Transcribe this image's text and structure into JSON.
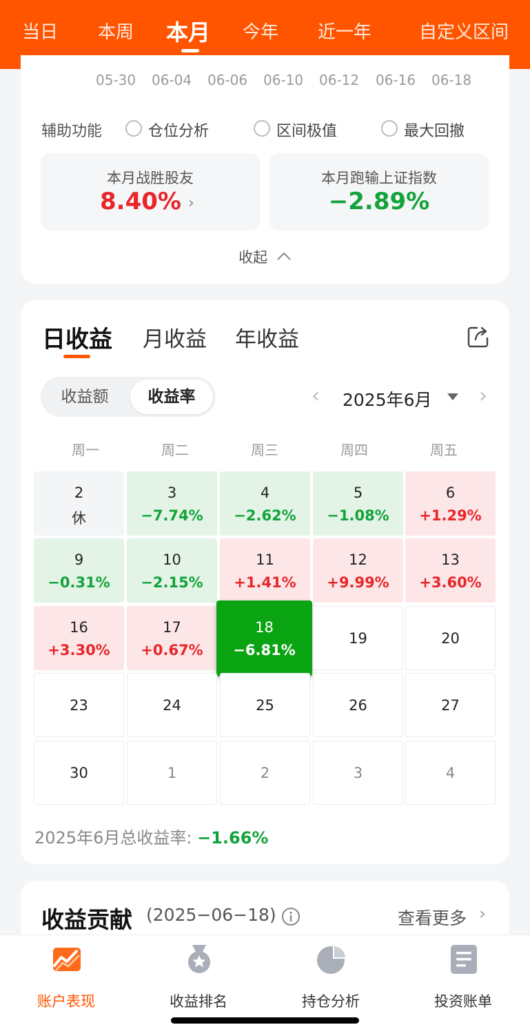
{
  "top_tabs": [
    {
      "label": "当日",
      "active": false
    },
    {
      "label": "本周",
      "active": false
    },
    {
      "label": "本月",
      "active": true
    },
    {
      "label": "今年",
      "active": false
    },
    {
      "label": "近一年",
      "active": false
    },
    {
      "label": "自定义区间",
      "active": false
    }
  ],
  "chart_axis_dates": [
    "05-30",
    "06-04",
    "06-06",
    "06-10",
    "06-12",
    "06-16",
    "06-18"
  ],
  "aux": {
    "title": "辅助功能",
    "options": [
      "仓位分析",
      "区间极值",
      "最大回撤"
    ]
  },
  "stats": {
    "beat_friends": {
      "title": "本月战胜股友",
      "value": "8.40%"
    },
    "vs_index": {
      "title": "本月跑输上证指数",
      "value": "−2.89%"
    }
  },
  "collapse_label": "收起",
  "period_tabs": [
    {
      "label": "日收益",
      "active": true
    },
    {
      "label": "月收益",
      "active": false
    },
    {
      "label": "年收益",
      "active": false
    }
  ],
  "segment": {
    "amount": "收益额",
    "rate": "收益率",
    "selected": "rate"
  },
  "month_nav": {
    "label": "2025年6月"
  },
  "weekdays": [
    "周一",
    "周二",
    "周三",
    "周四",
    "周五"
  ],
  "calendar": [
    [
      {
        "day": "2",
        "value": "休",
        "state": "rest"
      },
      {
        "day": "3",
        "value": "−7.74%",
        "state": "loss"
      },
      {
        "day": "4",
        "value": "−2.62%",
        "state": "loss"
      },
      {
        "day": "5",
        "value": "−1.08%",
        "state": "loss"
      },
      {
        "day": "6",
        "value": "+1.29%",
        "state": "gain"
      }
    ],
    [
      {
        "day": "9",
        "value": "−0.31%",
        "state": "loss"
      },
      {
        "day": "10",
        "value": "−2.15%",
        "state": "loss"
      },
      {
        "day": "11",
        "value": "+1.41%",
        "state": "gain"
      },
      {
        "day": "12",
        "value": "+9.99%",
        "state": "gain"
      },
      {
        "day": "13",
        "value": "+3.60%",
        "state": "gain"
      }
    ],
    [
      {
        "day": "16",
        "value": "+3.30%",
        "state": "gain"
      },
      {
        "day": "17",
        "value": "+0.67%",
        "state": "gain"
      },
      {
        "day": "18",
        "value": "−6.81%",
        "state": "selected"
      },
      {
        "day": "19",
        "value": "",
        "state": "empty"
      },
      {
        "day": "20",
        "value": "",
        "state": "empty"
      }
    ],
    [
      {
        "day": "23",
        "value": "",
        "state": "empty"
      },
      {
        "day": "24",
        "value": "",
        "state": "empty"
      },
      {
        "day": "25",
        "value": "",
        "state": "empty"
      },
      {
        "day": "26",
        "value": "",
        "state": "empty"
      },
      {
        "day": "27",
        "value": "",
        "state": "empty"
      }
    ],
    [
      {
        "day": "30",
        "value": "",
        "state": "empty"
      },
      {
        "day": "1",
        "value": "",
        "state": "next"
      },
      {
        "day": "2",
        "value": "",
        "state": "next"
      },
      {
        "day": "3",
        "value": "",
        "state": "next"
      },
      {
        "day": "4",
        "value": "",
        "state": "next"
      }
    ]
  ],
  "total": {
    "label": "2025年6月总收益率: ",
    "value": "−1.66%"
  },
  "contribution": {
    "title": "收益贡献",
    "date": "(2025−06−18)",
    "more": "查看更多"
  },
  "bottom_nav": [
    {
      "label": "账户表现",
      "icon": "trend-chart-icon",
      "active": true
    },
    {
      "label": "收益排名",
      "icon": "medal-icon",
      "active": false
    },
    {
      "label": "持仓分析",
      "icon": "pie-chart-icon",
      "active": false
    },
    {
      "label": "投资账单",
      "icon": "bill-document-icon",
      "active": false
    }
  ],
  "colors": {
    "brand": "#ff5500",
    "gain": "#e8262a",
    "loss": "#13a33b",
    "selected": "#0aa413"
  }
}
